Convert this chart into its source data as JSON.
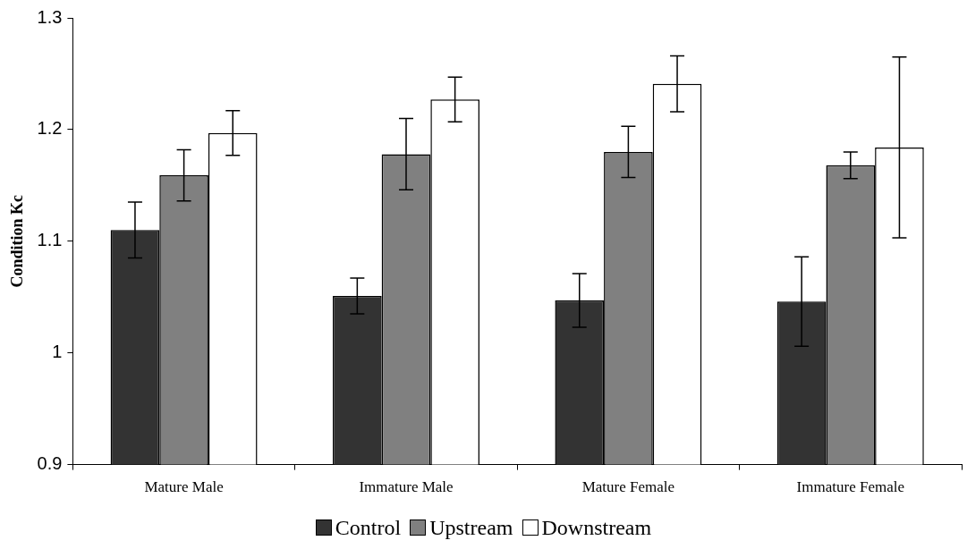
{
  "chart_data": {
    "type": "bar",
    "ylabel": "Condition Kc",
    "categories": [
      "Mature Male",
      "Immature Male",
      "Mature Female",
      "Immature Female"
    ],
    "series": [
      {
        "name": "Control",
        "color": "#333333",
        "values": [
          1.11,
          1.051,
          1.047,
          1.046
        ],
        "errors": [
          0.025,
          0.016,
          0.024,
          0.04
        ]
      },
      {
        "name": "Upstream",
        "color": "#808080",
        "values": [
          1.159,
          1.178,
          1.18,
          1.168
        ],
        "errors": [
          0.023,
          0.032,
          0.023,
          0.012
        ]
      },
      {
        "name": "Downstream",
        "color": "#ffffff",
        "values": [
          1.197,
          1.227,
          1.241,
          1.184
        ],
        "errors": [
          0.02,
          0.02,
          0.025,
          0.081
        ]
      }
    ],
    "ylim": [
      0.9,
      1.3
    ],
    "yticks": [
      0.9,
      1,
      1.1,
      1.2,
      1.3
    ],
    "grid": false,
    "legend": "bottom"
  }
}
